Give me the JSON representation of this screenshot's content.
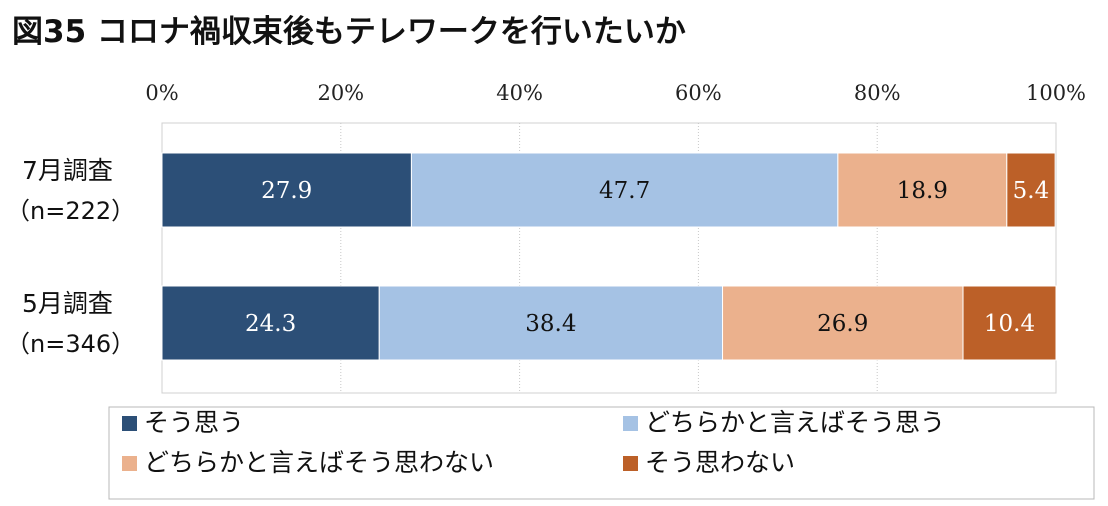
{
  "chart_data": {
    "type": "bar",
    "stacked": true,
    "orientation": "horizontal",
    "title": "図35 コロナ禍収束後もテレワークを行いたいか",
    "categories": [
      {
        "name": "7月調査",
        "n": "（n=222）"
      },
      {
        "name": "5月調査",
        "n": "（n=346）"
      }
    ],
    "series": [
      {
        "name": "そう思う",
        "color": "#2c4f77",
        "values": [
          27.9,
          24.3
        ]
      },
      {
        "name": "どちらかと言えばそう思う",
        "color": "#a5c2e4",
        "values": [
          47.7,
          38.4
        ]
      },
      {
        "name": "どちらかと言えばそう思わない",
        "color": "#ebb18d",
        "values": [
          18.9,
          26.9
        ]
      },
      {
        "name": "そう思わない",
        "color": "#bc6028",
        "values": [
          5.4,
          10.4
        ]
      }
    ],
    "x_ticks": [
      "0%",
      "20%",
      "40%",
      "60%",
      "80%",
      "100%"
    ],
    "xlim": [
      0,
      100
    ],
    "grid": true,
    "legend_position": "bottom"
  }
}
